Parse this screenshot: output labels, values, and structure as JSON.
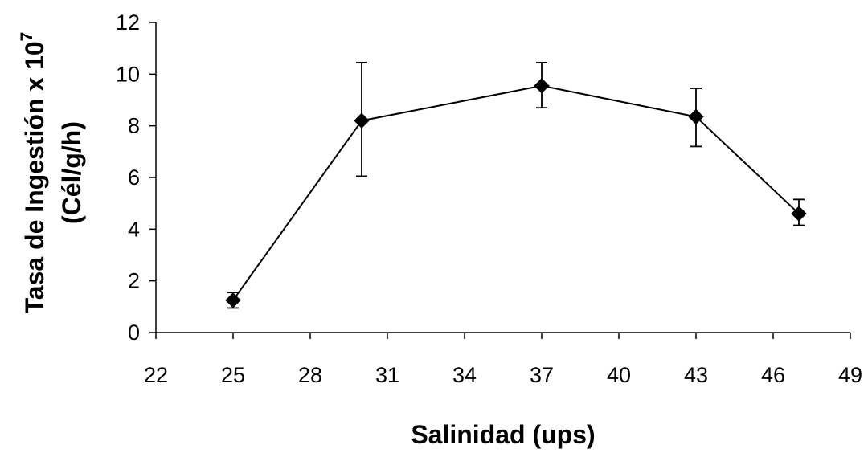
{
  "chart_data": {
    "type": "scatter",
    "xlabel": "Salinidad (ups)",
    "ylabel_line1": "Tasa de Ingestión x 10",
    "ylabel_exponent": "7",
    "ylabel_line2": "(Cél/g/h)",
    "xlim": [
      22,
      49
    ],
    "ylim": [
      0,
      12
    ],
    "xticks": [
      22,
      25,
      28,
      31,
      34,
      37,
      40,
      43,
      46,
      49
    ],
    "yticks": [
      0,
      2,
      4,
      6,
      8,
      10,
      12
    ],
    "grid": false,
    "legend": "none",
    "series": [
      {
        "x": [
          25,
          30,
          37,
          43,
          47
        ],
        "y": [
          1.25,
          8.2,
          9.55,
          8.35,
          4.6
        ],
        "error_low": [
          0.95,
          6.05,
          8.7,
          7.2,
          4.15
        ],
        "error_high": [
          1.55,
          10.45,
          10.45,
          9.45,
          5.15
        ],
        "marker": "diamond",
        "color": "#000000"
      }
    ]
  }
}
